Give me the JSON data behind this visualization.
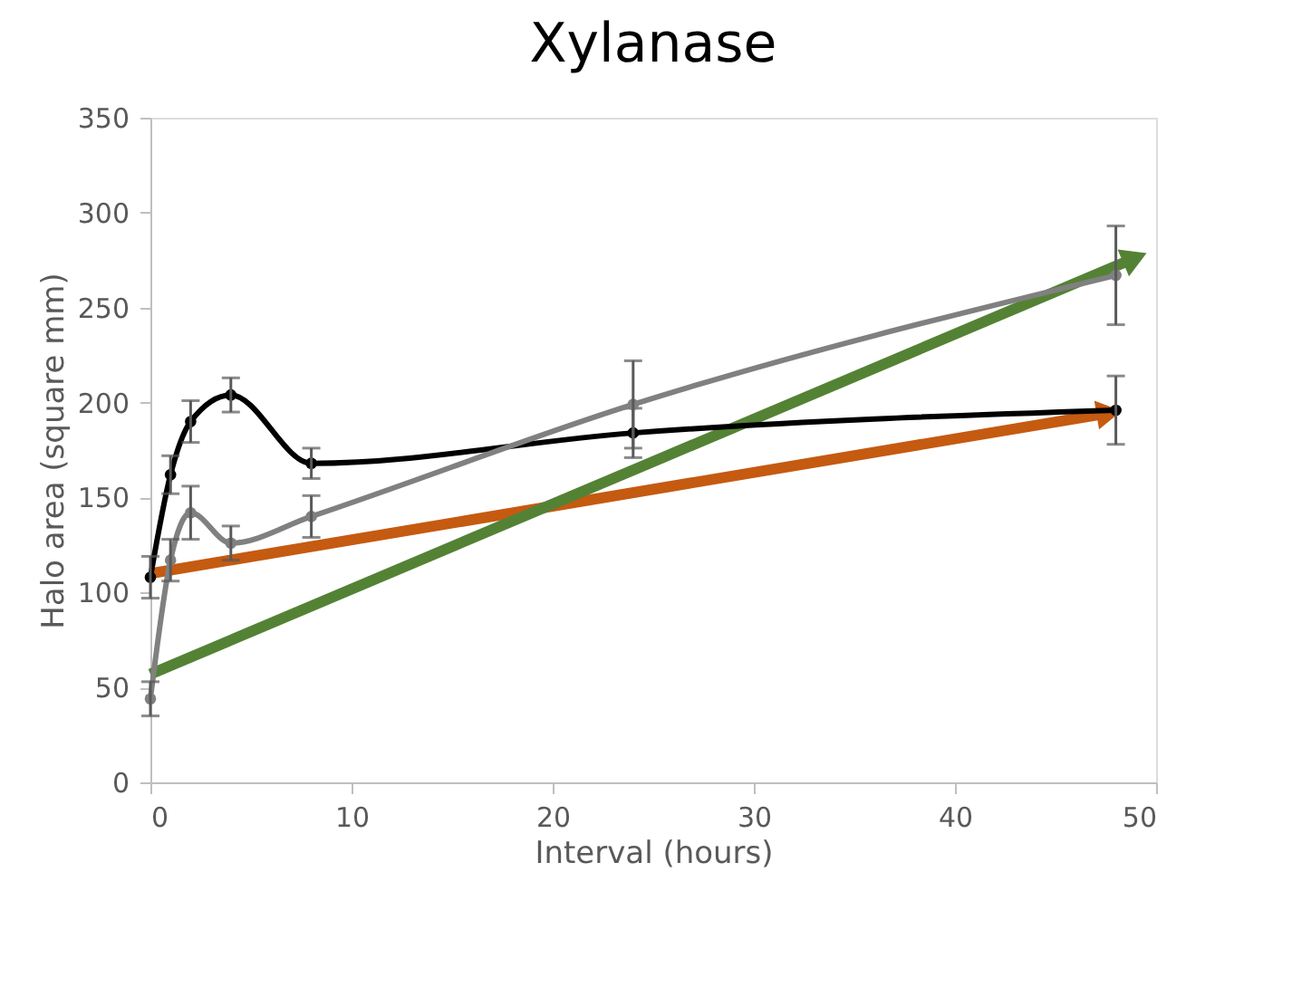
{
  "chart_data": {
    "type": "line",
    "title": "Xylanase",
    "xlabel": "Interval (hours)",
    "ylabel": "Halo area (square mm)",
    "xlim": [
      0,
      50
    ],
    "xticks": [
      0,
      10,
      20,
      30,
      40,
      50
    ],
    "ylim": [
      0,
      350
    ],
    "yticks": [
      0,
      50,
      100,
      150,
      200,
      250,
      300,
      350
    ],
    "grid": false,
    "line_style": "solid",
    "series": [
      {
        "color": "#000000",
        "marker": "circle",
        "x": [
          0,
          1,
          2,
          4,
          8,
          24,
          48
        ],
        "values": [
          108,
          162,
          190,
          204,
          168,
          184,
          196
        ],
        "errors": [
          11,
          10,
          11,
          9,
          8,
          13,
          18
        ]
      },
      {
        "color": "#808080",
        "marker": "circle",
        "x": [
          0,
          1,
          2,
          4,
          8,
          24,
          48
        ],
        "values": [
          44,
          117,
          142,
          126,
          140,
          199,
          267
        ],
        "errors": [
          9,
          11,
          14,
          9,
          11,
          23,
          26
        ]
      },
      {
        "type": "line",
        "color": "#c55a11",
        "marker": "triangle",
        "x": [
          0,
          47.4
        ],
        "values": [
          110,
          194
        ]
      },
      {
        "type": "line",
        "color": "#548235",
        "marker": "triangle",
        "x": [
          0,
          48.7
        ],
        "values": [
          57,
          275
        ]
      }
    ]
  }
}
